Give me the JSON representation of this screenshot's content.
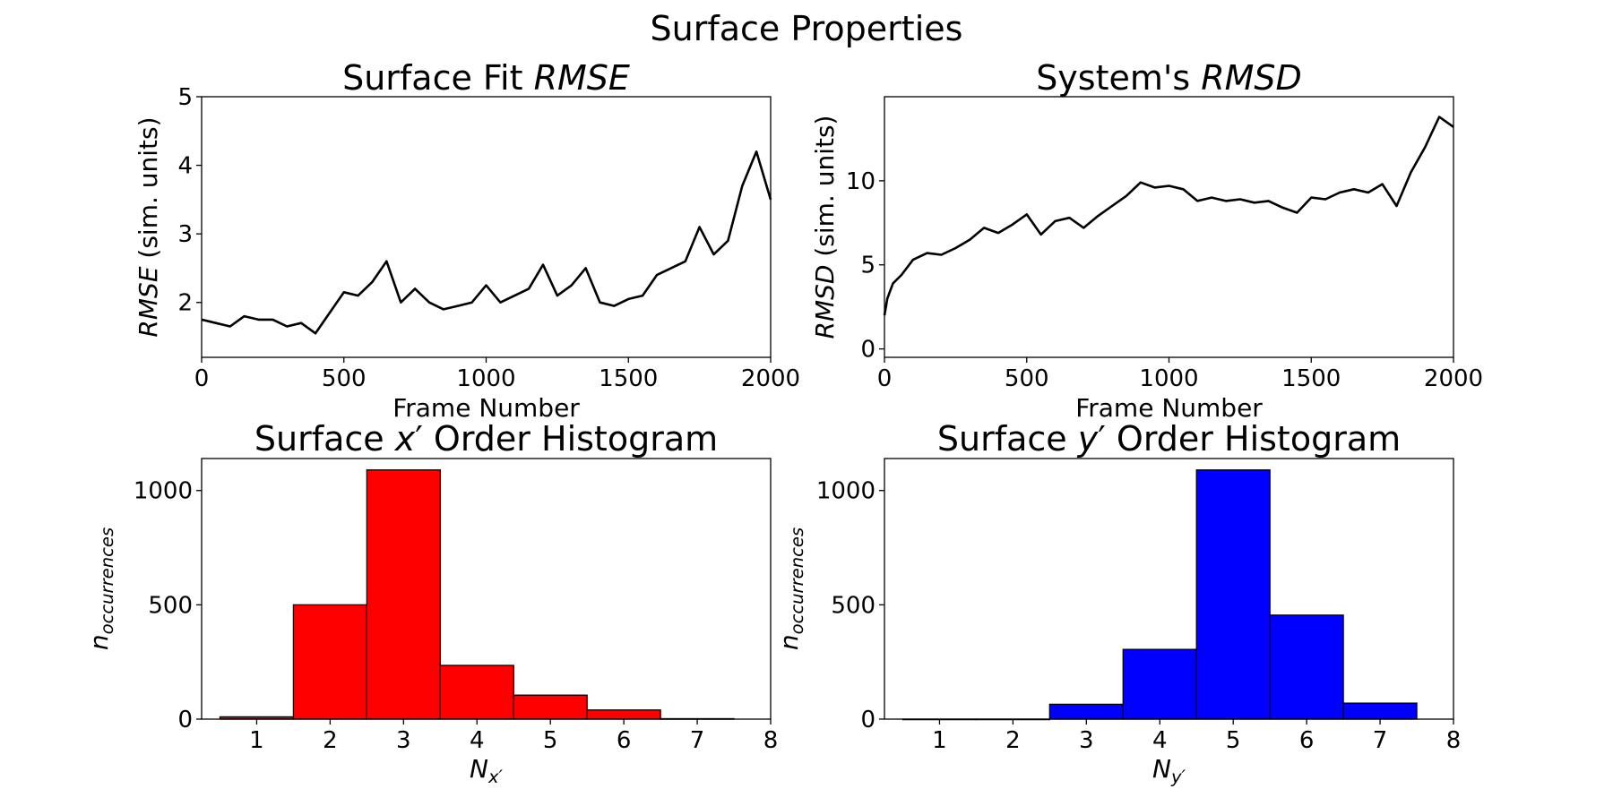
{
  "figure": {
    "suptitle": "Surface Properties"
  },
  "chart_data": [
    {
      "id": "rmse",
      "type": "line",
      "title": "Surface Fit RMSE",
      "title_parts": [
        {
          "text": "Surface Fit ",
          "italic": false
        },
        {
          "text": "RMSE",
          "italic": true
        }
      ],
      "xlabel": "Frame Number",
      "ylabel_parts": [
        {
          "text": "RMSE",
          "italic": true
        },
        {
          "text": " (sim. units)",
          "italic": false
        }
      ],
      "xlim": [
        0,
        2000
      ],
      "ylim": [
        1.2,
        5.0
      ],
      "xticks": [
        0,
        500,
        1000,
        1500,
        2000
      ],
      "yticks": [
        2,
        3,
        4,
        5
      ],
      "grid": false,
      "color": "#000000",
      "series": [
        {
          "x": [
            0,
            50,
            100,
            150,
            200,
            250,
            300,
            350,
            400,
            450,
            500,
            550,
            600,
            650,
            700,
            750,
            800,
            850,
            900,
            950,
            1000,
            1050,
            1100,
            1150,
            1200,
            1250,
            1300,
            1350,
            1400,
            1450,
            1500,
            1550,
            1600,
            1650,
            1700,
            1750,
            1800,
            1850,
            1900,
            1950,
            2000
          ],
          "y": [
            1.75,
            1.7,
            1.65,
            1.8,
            1.75,
            1.75,
            1.65,
            1.7,
            1.55,
            1.85,
            2.15,
            2.1,
            2.3,
            2.6,
            2.0,
            2.2,
            2.0,
            1.9,
            1.95,
            2.0,
            2.25,
            2.0,
            2.1,
            2.2,
            2.55,
            2.1,
            2.25,
            2.5,
            2.0,
            1.95,
            2.05,
            2.1,
            2.4,
            2.5,
            2.6,
            3.1,
            2.7,
            2.9,
            3.7,
            4.2,
            3.5
          ]
        }
      ]
    },
    {
      "id": "rmsd",
      "type": "line",
      "title": "System's RMSD",
      "title_parts": [
        {
          "text": "System's ",
          "italic": false
        },
        {
          "text": "RMSD",
          "italic": true
        }
      ],
      "xlabel": "Frame Number",
      "ylabel_parts": [
        {
          "text": "RMSD",
          "italic": true
        },
        {
          "text": " (sim. units)",
          "italic": false
        }
      ],
      "xlim": [
        0,
        2000
      ],
      "ylim": [
        -0.5,
        15.0
      ],
      "xticks": [
        0,
        500,
        1000,
        1500,
        2000
      ],
      "yticks": [
        0,
        5,
        10
      ],
      "grid": false,
      "color": "#000000",
      "series": [
        {
          "x": [
            0,
            10,
            30,
            60,
            100,
            150,
            200,
            250,
            300,
            350,
            400,
            450,
            500,
            550,
            600,
            650,
            700,
            750,
            800,
            850,
            900,
            950,
            1000,
            1050,
            1100,
            1150,
            1200,
            1250,
            1300,
            1350,
            1400,
            1450,
            1500,
            1550,
            1600,
            1650,
            1700,
            1750,
            1800,
            1850,
            1900,
            1950,
            2000
          ],
          "y": [
            2.0,
            3.0,
            3.9,
            4.4,
            5.3,
            5.7,
            5.6,
            6.0,
            6.5,
            7.2,
            6.9,
            7.4,
            8.0,
            6.8,
            7.6,
            7.8,
            7.2,
            7.9,
            8.5,
            9.1,
            9.9,
            9.6,
            9.7,
            9.5,
            8.8,
            9.0,
            8.8,
            8.9,
            8.7,
            8.8,
            8.4,
            8.1,
            9.0,
            8.9,
            9.3,
            9.5,
            9.3,
            9.8,
            8.5,
            10.5,
            12.0,
            13.8,
            13.2
          ]
        }
      ]
    },
    {
      "id": "hist_x",
      "type": "bar",
      "title": "Surface x′ Order Histogram",
      "title_parts": [
        {
          "text": "Surface ",
          "italic": false
        },
        {
          "text": "x",
          "italic": true
        },
        {
          "text": "′ Order Histogram",
          "italic": false
        }
      ],
      "xlabel": "Nx′",
      "xlabel_parts": [
        {
          "text": "N",
          "italic": true,
          "sub": false
        },
        {
          "text": "x′",
          "italic": true,
          "sub": true
        }
      ],
      "ylabel": "noccurrences",
      "ylabel_parts": [
        {
          "text": "n",
          "italic": true,
          "sub": false
        },
        {
          "text": "occurrences",
          "italic": true,
          "sub": true
        }
      ],
      "categories": [
        1,
        2,
        3,
        4,
        5,
        6,
        7
      ],
      "values": [
        10,
        500,
        1090,
        235,
        105,
        40,
        2
      ],
      "xlim": [
        0.25,
        8.0
      ],
      "ylim": [
        0,
        1140
      ],
      "xticks": [
        1,
        2,
        3,
        4,
        5,
        6,
        7,
        8
      ],
      "yticks": [
        0,
        500,
        1000
      ],
      "grid": false,
      "color": "#ff0000"
    },
    {
      "id": "hist_y",
      "type": "bar",
      "title": "Surface y′ Order Histogram",
      "title_parts": [
        {
          "text": "Surface ",
          "italic": false
        },
        {
          "text": "y",
          "italic": true
        },
        {
          "text": "′ Order Histogram",
          "italic": false
        }
      ],
      "xlabel": "Ny′",
      "xlabel_parts": [
        {
          "text": "N",
          "italic": true,
          "sub": false
        },
        {
          "text": "y′",
          "italic": true,
          "sub": true
        }
      ],
      "ylabel": "noccurrences",
      "ylabel_parts": [
        {
          "text": "n",
          "italic": true,
          "sub": false
        },
        {
          "text": "occurrences",
          "italic": true,
          "sub": true
        }
      ],
      "categories": [
        1,
        2,
        3,
        4,
        5,
        6,
        7
      ],
      "values": [
        0,
        0,
        65,
        305,
        1090,
        455,
        70
      ],
      "xlim": [
        0.25,
        8.0
      ],
      "ylim": [
        0,
        1140
      ],
      "xticks": [
        1,
        2,
        3,
        4,
        5,
        6,
        7,
        8
      ],
      "yticks": [
        0,
        500,
        1000
      ],
      "grid": false,
      "color": "#0000ff"
    }
  ]
}
